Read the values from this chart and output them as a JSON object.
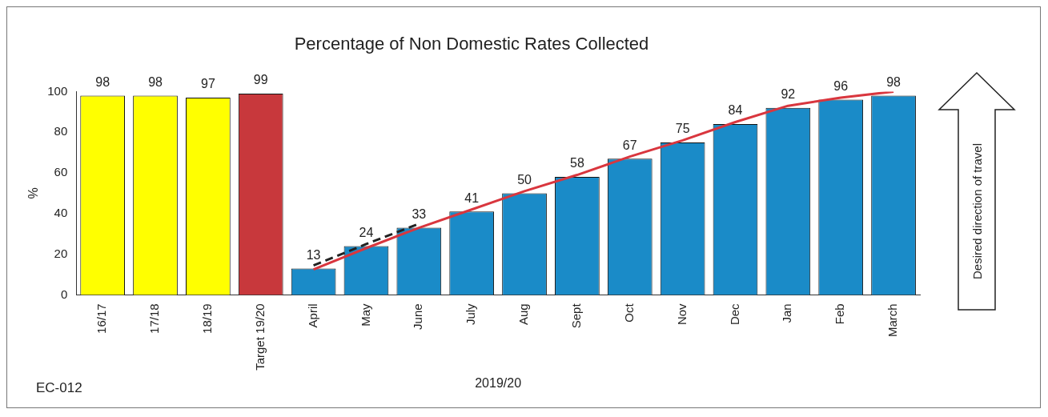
{
  "chart_data": {
    "type": "bar",
    "title": "Percentage of Non Domestic Rates Collected",
    "xlabel": "2019/20",
    "ylabel": "%",
    "categories": [
      "16/17",
      "17/18",
      "18/19",
      "Target 19/20",
      "April",
      "May",
      "June",
      "July",
      "Aug",
      "Sept",
      "Oct",
      "Nov",
      "Dec",
      "Jan",
      "Feb",
      "March"
    ],
    "series": [
      {
        "values": [
          98,
          98,
          97,
          99,
          13,
          24,
          33,
          41,
          50,
          58,
          67,
          75,
          84,
          92,
          96,
          98
        ],
        "value_labels": [
          "98",
          "98",
          "97",
          "99",
          "13",
          "24",
          "33",
          "41",
          "50",
          "58",
          "67",
          "75",
          "84",
          "92",
          "96",
          "98"
        ],
        "colors": [
          "#ffff00",
          "#ffff00",
          "#ffff00",
          "#c8383c",
          "#1a8bc8",
          "#1a8bc8",
          "#1a8bc8",
          "#1a8bc8",
          "#1a8bc8",
          "#1a8bc8",
          "#1a8bc8",
          "#1a8bc8",
          "#1a8bc8",
          "#1a8bc8",
          "#1a8bc8",
          "#1a8bc8"
        ]
      },
      {
        "type": "line",
        "color": "#d9363e",
        "line_style": "solid",
        "values": [
          null,
          null,
          null,
          null,
          12.5,
          23,
          33,
          42,
          51,
          59,
          68,
          76,
          85,
          93,
          97,
          100
        ]
      },
      {
        "type": "line",
        "color": "#222222",
        "line_style": "dashed",
        "values": [
          null,
          null,
          null,
          null,
          14.5,
          25,
          35,
          null,
          null,
          null,
          null,
          null,
          null,
          null,
          null,
          null
        ]
      }
    ],
    "ylim": [
      0,
      100
    ],
    "yticks": [
      0,
      20,
      40,
      60,
      80,
      100
    ],
    "grid": false,
    "legend": false,
    "marker": "none",
    "annotations": [
      "EC-012",
      "Desired direction of travel"
    ]
  }
}
